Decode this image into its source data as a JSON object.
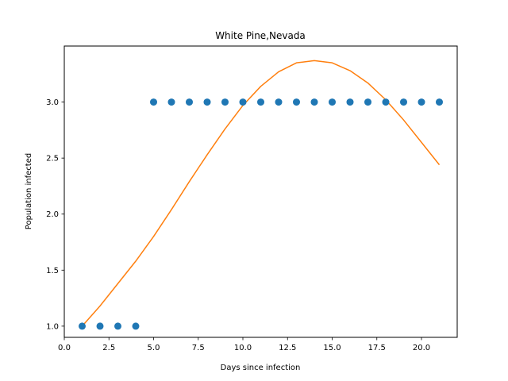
{
  "chart_data": {
    "type": "scatter",
    "title": "White Pine,Nevada",
    "xlabel": "Days since infection",
    "ylabel": "Population infected",
    "xlim": [
      0,
      22
    ],
    "ylim": [
      0.9,
      3.5
    ],
    "grid": false,
    "legend": "none",
    "x_ticks": [
      0.0,
      2.5,
      5.0,
      7.5,
      10.0,
      12.5,
      15.0,
      17.5,
      20.0
    ],
    "x_tick_labels": [
      "0.0",
      "2.5",
      "5.0",
      "7.5",
      "10.0",
      "12.5",
      "15.0",
      "17.5",
      "20.0"
    ],
    "y_ticks": [
      1.0,
      1.5,
      2.0,
      2.5,
      3.0
    ],
    "y_tick_labels": [
      "1.0",
      "1.5",
      "2.0",
      "2.5",
      "3.0"
    ],
    "series": [
      {
        "kind": "scatter",
        "color": "#1f77b4",
        "x": [
          1,
          2,
          3,
          4,
          5,
          6,
          7,
          8,
          9,
          10,
          11,
          12,
          13,
          14,
          15,
          16,
          17,
          18,
          19,
          20,
          21
        ],
        "y": [
          1,
          1,
          1,
          1,
          3,
          3,
          3,
          3,
          3,
          3,
          3,
          3,
          3,
          3,
          3,
          3,
          3,
          3,
          3,
          3,
          3
        ]
      },
      {
        "kind": "line",
        "color": "#ff7f0e",
        "x": [
          1,
          2,
          3,
          4,
          5,
          6,
          7,
          8,
          9,
          10,
          11,
          12,
          13,
          14,
          15,
          16,
          17,
          18,
          19,
          20,
          21
        ],
        "y": [
          1.0,
          1.18,
          1.38,
          1.58,
          1.8,
          2.04,
          2.29,
          2.53,
          2.76,
          2.97,
          3.14,
          3.27,
          3.35,
          3.37,
          3.35,
          3.28,
          3.17,
          3.02,
          2.84,
          2.64,
          2.44
        ]
      }
    ]
  }
}
